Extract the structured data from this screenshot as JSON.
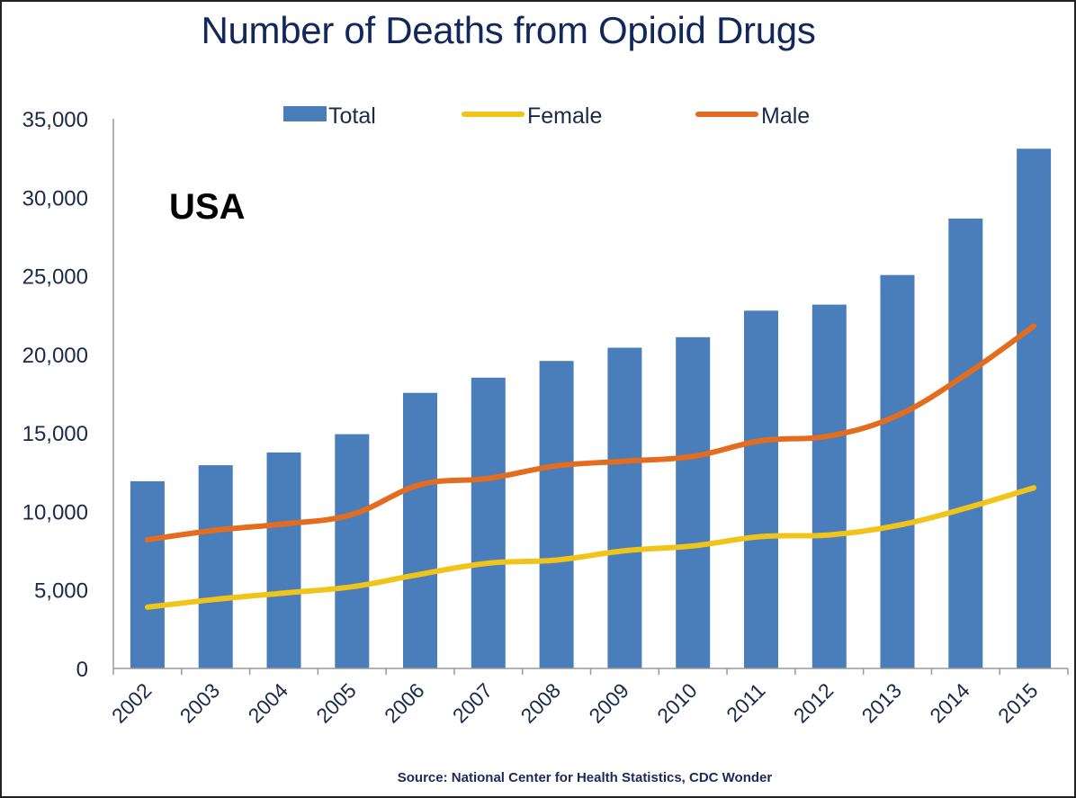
{
  "chart_data": {
    "type": "bar",
    "title": "Number of Deaths from Opioid Drugs",
    "annotation": "USA",
    "source": "Source: National Center for Health Statistics, CDC Wonder",
    "xlabel": "",
    "ylabel": "",
    "ylim": [
      0,
      35000
    ],
    "yticks": [
      0,
      5000,
      10000,
      15000,
      20000,
      25000,
      30000,
      35000
    ],
    "ytick_labels": [
      "0",
      "5,000",
      "10,000",
      "15,000",
      "20,000",
      "25,000",
      "30,000",
      "35,000"
    ],
    "grid": false,
    "legend_position": "top",
    "categories": [
      "2002",
      "2003",
      "2004",
      "2005",
      "2006",
      "2007",
      "2008",
      "2009",
      "2010",
      "2011",
      "2012",
      "2013",
      "2014",
      "2015"
    ],
    "series": [
      {
        "name": "Total",
        "type": "bar",
        "color": "#4a7ebb",
        "values": [
          11920,
          12940,
          13756,
          14918,
          17545,
          18516,
          19582,
          20422,
          21089,
          22784,
          23166,
          25052,
          28647,
          33091
        ]
      },
      {
        "name": "Female",
        "type": "line",
        "color": "#f0c419",
        "values": [
          3900,
          4400,
          4800,
          5200,
          6000,
          6700,
          6900,
          7500,
          7800,
          8400,
          8500,
          9100,
          10200,
          11500
        ]
      },
      {
        "name": "Male",
        "type": "line",
        "color": "#e46c1e",
        "values": [
          8200,
          8800,
          9200,
          9800,
          11700,
          12100,
          12900,
          13200,
          13500,
          14500,
          14800,
          16100,
          18700,
          21800
        ]
      }
    ]
  }
}
